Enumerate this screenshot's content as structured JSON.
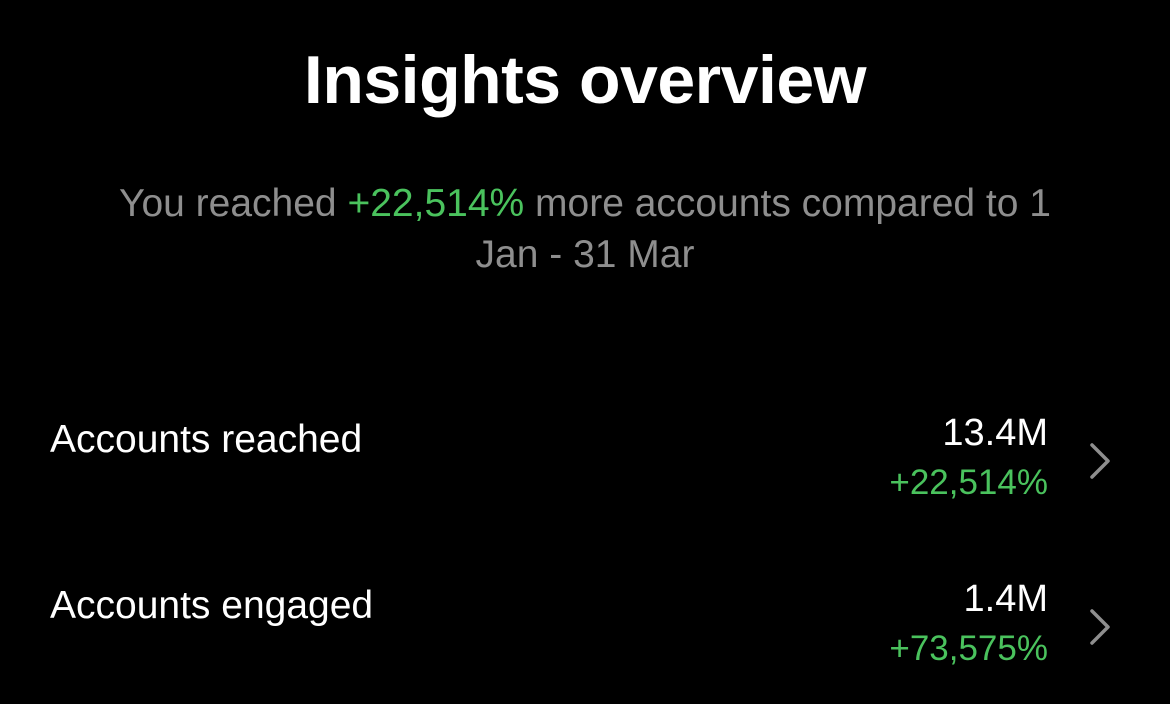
{
  "header": {
    "title": "Insights overview"
  },
  "summary": {
    "prefix": "You reached",
    "change": "+22,514%",
    "suffix": "more accounts compared to 1 Jan - 31 Mar"
  },
  "metrics": [
    {
      "label": "Accounts reached",
      "value": "13.4M",
      "change": "+22,514%",
      "icon": "chevron-right-icon"
    },
    {
      "label": "Accounts engaged",
      "value": "1.4M",
      "change": "+73,575%",
      "icon": "chevron-right-icon"
    }
  ],
  "colors": {
    "background": "#000000",
    "text": "#ffffff",
    "secondary_text": "#8e8e8e",
    "positive": "#4ac25d",
    "chevron": "#8e8e8e"
  }
}
